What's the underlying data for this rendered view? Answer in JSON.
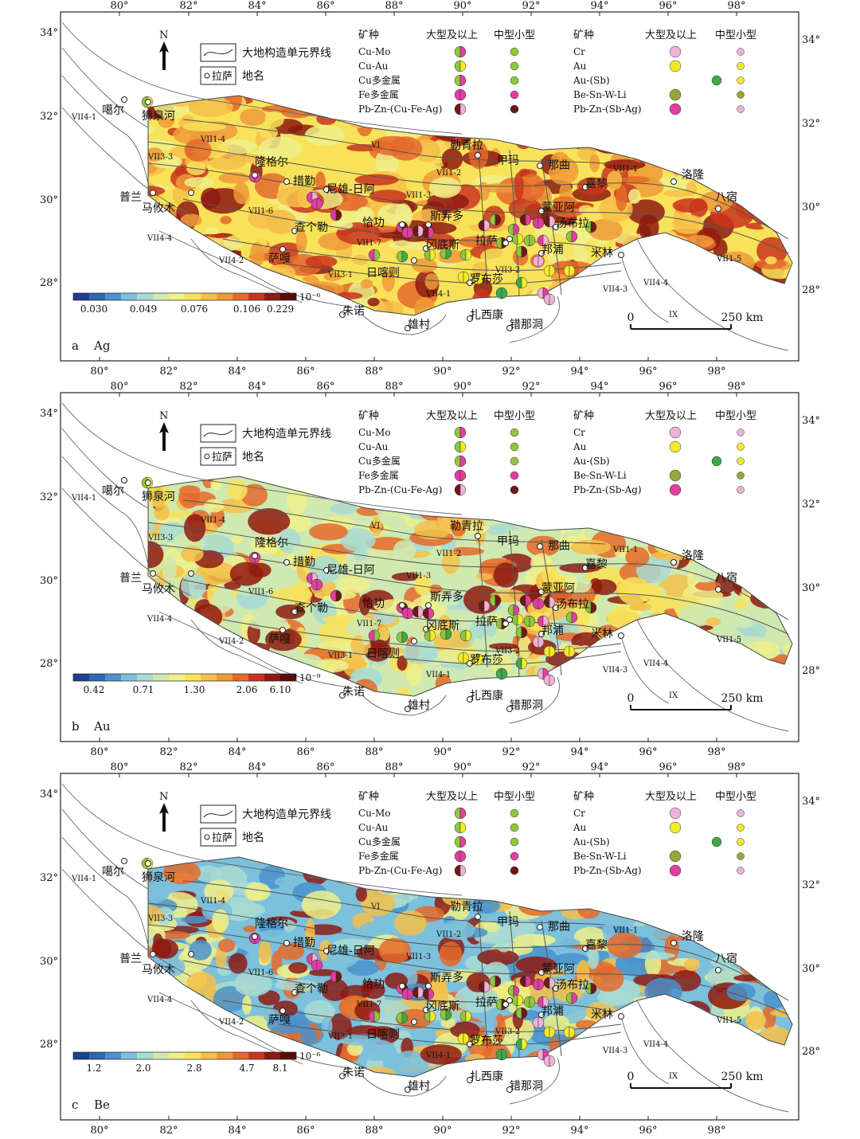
{
  "legend": {
    "north": "N",
    "boundary_label": "大地构造单元界线",
    "place_sample": "拉萨",
    "place_label": "地名",
    "col_type": "矿种",
    "col_large": "大型及以上",
    "col_medium_small": "中型小型",
    "left_types": [
      "Cu-Mo",
      "Cu-Au",
      "Cu多金属",
      "Fe多金属",
      "Pb-Zn-(Cu-Fe-Ag)"
    ],
    "right_types": [
      "Cr",
      "Au",
      "Au-(Sb)",
      "Be-Sn-W-Li",
      "Pb-Zn-(Sb-Ag)"
    ]
  },
  "place_names": [
    "噶尔",
    "狮泉河",
    "措勤",
    "隆格尔",
    "尼雄-日阿",
    "恰功",
    "斯弄多",
    "拉萨",
    "甲玛",
    "勒青拉",
    "那曲",
    "洛隆",
    "八宿",
    "嘉黎",
    "蒙亚阿",
    "汤布拉",
    "邦浦",
    "米林",
    "冈底斯",
    "罗布莎",
    "扎西康",
    "错那洞",
    "雄村",
    "朱诺",
    "日喀则",
    "萨嘎",
    "查个勒",
    "普兰",
    "马攸木"
  ],
  "unit_labels": [
    "VII4-1",
    "VII1-4",
    "VII3-3",
    "VI",
    "VII1-2",
    "VII1-3",
    "VII1-1",
    "VII1-6",
    "VII1-5",
    "VII4-4",
    "VII4-2",
    "VII1-7",
    "VII3-1",
    "VII3-2",
    "VII4-1",
    "VII4-3",
    "VII4-4",
    "IX"
  ],
  "scale_bar": {
    "start": "0",
    "end": "250 km"
  },
  "panels": [
    {
      "letter": "a",
      "element": "Ag",
      "unit": "10⁻⁶",
      "colorbar_ticks": [
        "0.030",
        "0.049",
        "0.076",
        "0.106",
        "0.229"
      ],
      "lon_ticks_top": [
        "80°",
        "82°",
        "84°",
        "86°",
        "88°",
        "90°",
        "92°",
        "94°",
        "96°",
        "98°"
      ],
      "lon_ticks_bottom": [
        "80°",
        "82°",
        "84°",
        "86°",
        "88°",
        "90°",
        "92°",
        "94°",
        "96°",
        "98°"
      ],
      "lat_ticks_left": [
        "34°",
        "32°",
        "30°",
        "28°"
      ],
      "lat_ticks_right": [
        "34°",
        "32°",
        "30°",
        "28°"
      ]
    },
    {
      "letter": "b",
      "element": "Au",
      "unit": "10⁻⁹",
      "colorbar_ticks": [
        "0.42",
        "0.71",
        "1.30",
        "2.06",
        "6.10"
      ],
      "lon_ticks_top": [
        "80°",
        "82°",
        "84°",
        "86°",
        "88°",
        "90°",
        "92°",
        "94°",
        "96°",
        "98°"
      ],
      "lon_ticks_bottom": [
        "80°",
        "82°",
        "84°",
        "86°",
        "88°",
        "90°",
        "92°",
        "94°",
        "96°",
        "98°"
      ],
      "lat_ticks_left": [
        "34°",
        "32°",
        "30°",
        "28°"
      ],
      "lat_ticks_right": [
        "34°",
        "32°",
        "30°",
        "28°"
      ]
    },
    {
      "letter": "c",
      "element": "Be",
      "unit": "10⁻⁶",
      "colorbar_ticks": [
        "1.2",
        "2.0",
        "2.8",
        "4.7",
        "8.1"
      ],
      "lon_ticks_top": [
        "80°",
        "82°",
        "84°",
        "86°",
        "88°",
        "90°",
        "92°",
        "94°",
        "96°",
        "98°"
      ],
      "lon_ticks_bottom": [
        "80°",
        "82°",
        "84°",
        "86°",
        "88°",
        "90°",
        "92°",
        "94°",
        "96°",
        "98°"
      ],
      "lat_ticks_left": [
        "34°",
        "32°",
        "30°",
        "28°"
      ],
      "lat_ticks_right": [
        "34°",
        "32°",
        "30°",
        "28°"
      ]
    }
  ],
  "colors": {
    "colorbar": [
      "#1f3f8f",
      "#2f66b5",
      "#4a93cc",
      "#7cc0dc",
      "#a9dbd2",
      "#cfe9b1",
      "#eef08a",
      "#f8e25a",
      "#f4c04a",
      "#ef9a3a",
      "#e46a2a",
      "#c9351f",
      "#8e1a12",
      "#5a0c08"
    ],
    "ramp_ag": [
      "#eef08a",
      "#f8e25a",
      "#f4c04a",
      "#ef9a3a",
      "#e46a2a",
      "#c9351f",
      "#8e1a12"
    ],
    "ramp_au": [
      "#a9dbd2",
      "#cfe9b1",
      "#eef08a",
      "#f8e25a",
      "#f4c04a",
      "#e46a2a",
      "#8e1a12"
    ],
    "ramp_be": [
      "#4a93cc",
      "#7cc0dc",
      "#a9dbd2",
      "#eef08a",
      "#f4c04a",
      "#e46a2a",
      "#8e1a12"
    ],
    "cu": "#8fc73e",
    "pink": "#e13ea0",
    "magenta": "#d52e8d",
    "brown": "#6b1a1a",
    "lightpink": "#efb1d8",
    "yellow": "#f3ea2a",
    "olive": "#9aa53a",
    "green": "#3fa94a"
  }
}
